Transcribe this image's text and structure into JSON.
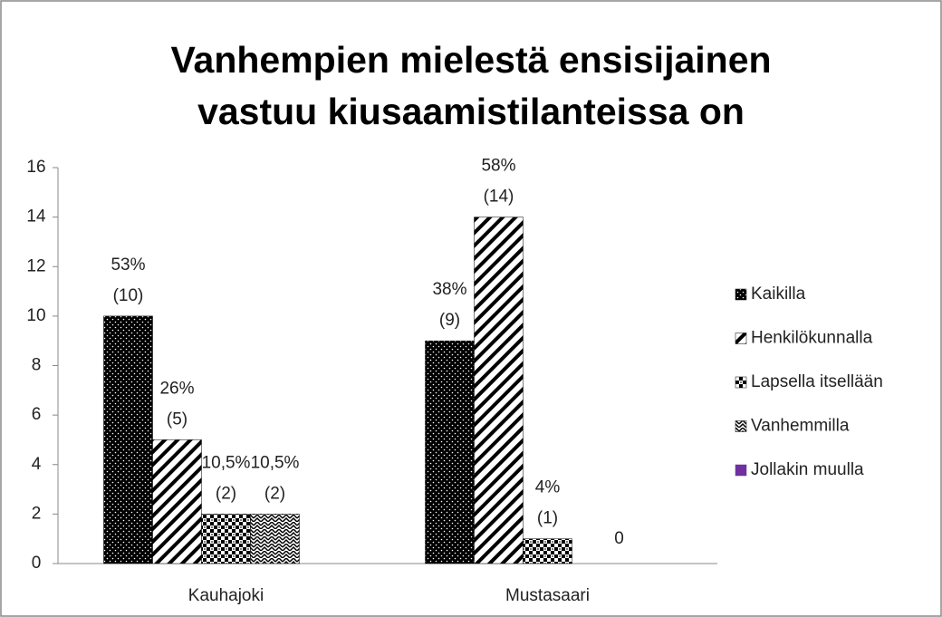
{
  "chart_data": {
    "type": "bar",
    "title": "Vanhempien mielestä ensisijainen vastuu kiusaamistilanteissa on",
    "categories": [
      "Kauhajoki",
      "Mustasaari"
    ],
    "series": [
      {
        "name": "Kaikilla",
        "color": "#000000",
        "values": [
          10,
          9
        ],
        "value_labels": [
          [
            "53%",
            "(10)"
          ],
          [
            "38%",
            "(9)"
          ]
        ]
      },
      {
        "name": "Henkilökunnalla",
        "color": "#000000",
        "values": [
          5,
          14
        ],
        "value_labels": [
          [
            "26%",
            "(5)"
          ],
          [
            "58%",
            "(14)"
          ]
        ]
      },
      {
        "name": "Lapsella itsellään",
        "color": "#000000",
        "values": [
          2,
          1
        ],
        "value_labels": [
          [
            "10,5%",
            "(2)"
          ],
          [
            "4%",
            "(1)"
          ]
        ]
      },
      {
        "name": "Vanhemmilla",
        "color": "#000000",
        "values": [
          2,
          0
        ],
        "value_labels": [
          [
            "10,5%",
            "(2)"
          ],
          [
            "0"
          ]
        ]
      },
      {
        "name": "Jollakin muulla",
        "color": "#7030a0",
        "values": [
          null,
          null
        ],
        "value_labels": [
          null,
          null
        ]
      }
    ],
    "ylim": [
      0,
      16
    ],
    "yticks": [
      0,
      2,
      4,
      6,
      8,
      10,
      12,
      14,
      16
    ],
    "grid": false,
    "legend": "right"
  }
}
